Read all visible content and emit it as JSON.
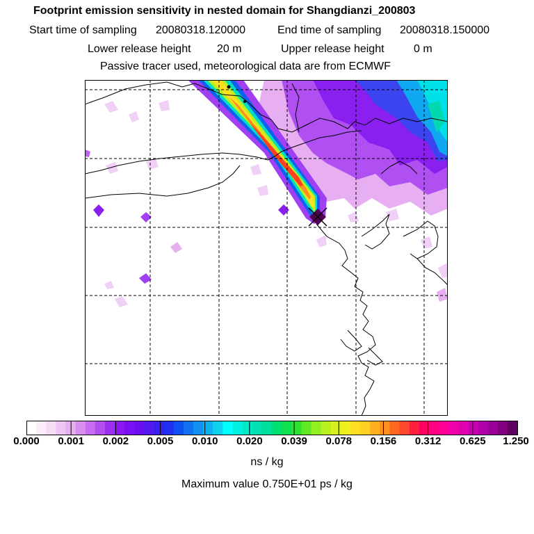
{
  "title": "Footprint emission sensitivity in nested domain for Shangdianzi_200803",
  "sampling": {
    "start_label": "Start time of sampling",
    "start_value": "20080318.120000",
    "end_label": "End time of sampling",
    "end_value": "20080318.150000"
  },
  "release": {
    "lower_label": "Lower release height",
    "lower_value": "20 m",
    "upper_label": "Upper release height",
    "upper_value": "0 m"
  },
  "info_line": "Passive tracer used, meteorological data are from ECMWF",
  "colorbar": {
    "ticks": [
      "0.000",
      "0.001",
      "0.002",
      "0.005",
      "0.010",
      "0.020",
      "0.039",
      "0.078",
      "0.156",
      "0.312",
      "0.625",
      "1.250"
    ],
    "colors": [
      "#ffffff",
      "#fbeefb",
      "#f6dcf6",
      "#efc6f3",
      "#e8aef2",
      "#d98ef2",
      "#c56cf2",
      "#b04ef2",
      "#9c30f2",
      "#8a18f2",
      "#7a10f2",
      "#6a10f0",
      "#5418f0",
      "#3a20f0",
      "#2030f0",
      "#1050f0",
      "#1070f0",
      "#1090f0",
      "#10b0f0",
      "#10d0f0",
      "#00ffff",
      "#00f0e0",
      "#00e8c8",
      "#00e0b0",
      "#00e098",
      "#00e070",
      "#10e050",
      "#30e030",
      "#60e820",
      "#90f020",
      "#b8f020",
      "#d8f020",
      "#f0f020",
      "#ffe020",
      "#ffd020",
      "#ffb020",
      "#ff9020",
      "#ff6820",
      "#ff4830",
      "#ff2040",
      "#ff0060",
      "#ff0080",
      "#ff0098",
      "#f000a8",
      "#e000b0",
      "#c800b0",
      "#b000a8",
      "#980098",
      "#800080",
      "#600060"
    ],
    "units": "ns / kg"
  },
  "maximum": "Maximum value  0.750E+01 ps / kg",
  "colors": {
    "plume_core": "#ff3300",
    "plume_mid": "#ffe020",
    "plume_outer": "#00e0c0",
    "plume_edge": "#4020f0",
    "tracer_purple": "#a030f0",
    "tracer_cyan": "#00c8f0",
    "land": "#ffffff"
  }
}
